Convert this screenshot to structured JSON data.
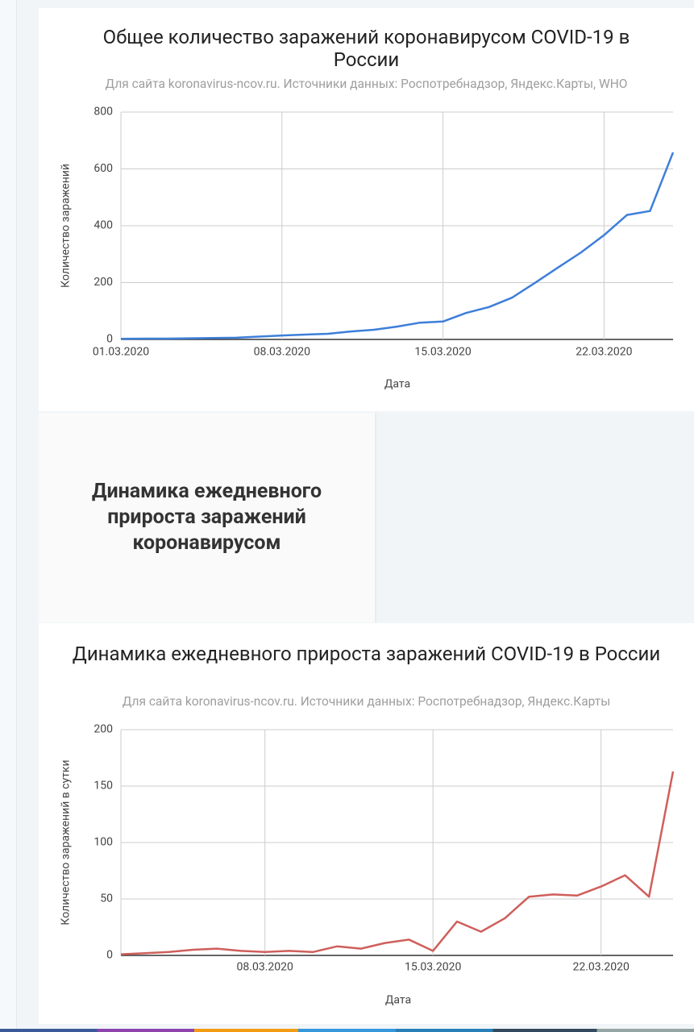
{
  "chart_data": [
    {
      "type": "line",
      "title": "Общее количество заражений коронавирусом COVID-19 в России",
      "subtitle": "Для сайта koronavirus-ncov.ru. Источники данных: Роспотребнадзор, Яндекс.Карты, WHO",
      "x_label": "Дата",
      "y_label": "Количество заражений",
      "categories": [
        "01.03.2020",
        null,
        null,
        null,
        null,
        null,
        null,
        "08.03.2020",
        null,
        null,
        null,
        null,
        null,
        null,
        "15.03.2020",
        null,
        null,
        null,
        null,
        null,
        null,
        "22.03.2020",
        null,
        null,
        null
      ],
      "series": [
        {
          "name": "Количество заражений",
          "color": "#3d7fd9",
          "values": [
            2,
            3,
            3,
            4,
            5,
            6,
            10,
            14,
            17,
            20,
            28,
            34,
            45,
            59,
            63,
            93,
            114,
            147,
            199,
            253,
            306,
            367,
            438,
            452,
            658
          ]
        }
      ],
      "ylim": [
        0,
        800
      ],
      "yticks": [
        0,
        200,
        400,
        600,
        800
      ],
      "grid": true
    },
    {
      "type": "line",
      "title": "Динамика ежедневного прироста заражений COVID-19 в России",
      "subtitle": "Для сайта koronavirus-ncov.ru. Источники данных: Роспотребнадзор, Яндекс.Карты",
      "x_label": "Дата",
      "y_label": "Количество заражений в сутки",
      "categories": [
        null,
        null,
        null,
        null,
        null,
        null,
        "08.03.2020",
        null,
        null,
        null,
        null,
        null,
        null,
        "15.03.2020",
        null,
        null,
        null,
        null,
        null,
        null,
        "22.03.2020",
        null,
        null,
        null
      ],
      "series": [
        {
          "name": "Количество заражений в сутки",
          "color": "#cf5f5b",
          "values": [
            1,
            2,
            3,
            5,
            6,
            4,
            3,
            4,
            3,
            8,
            6,
            11,
            14,
            4,
            30,
            21,
            33,
            52,
            54,
            53,
            61,
            71,
            52,
            163
          ]
        }
      ],
      "ylim": [
        0,
        200
      ],
      "yticks": [
        0,
        50,
        100,
        150,
        200
      ],
      "grid": true
    }
  ],
  "section_heading": "Динамика ежедневного прироста заражений коронавирусом"
}
